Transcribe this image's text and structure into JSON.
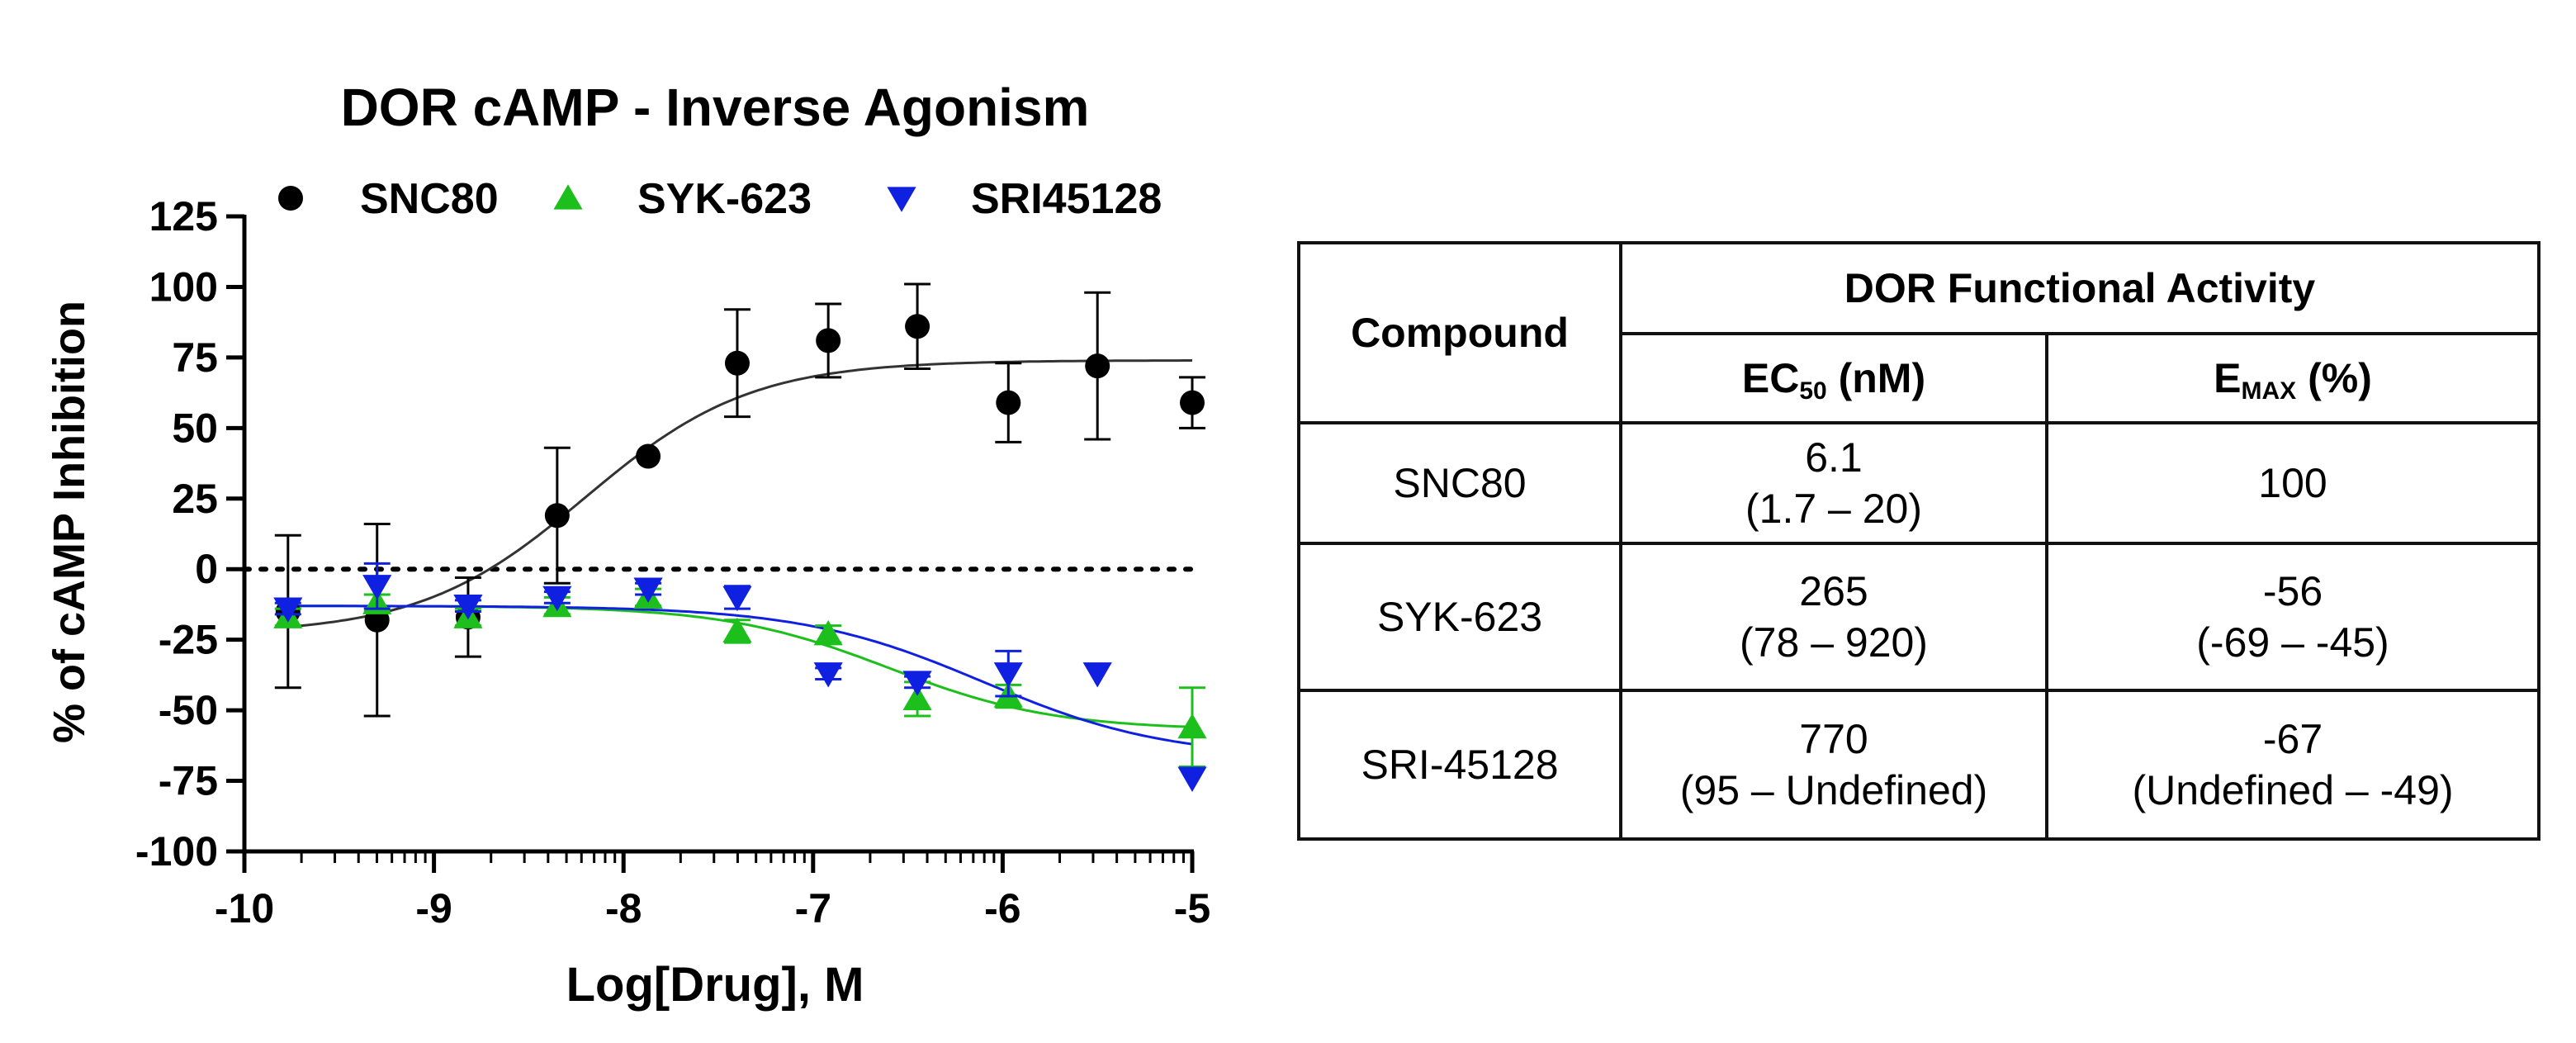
{
  "chart_data": {
    "type": "scatter",
    "title": "DOR cAMP - Inverse Agonism",
    "xlabel": "Log[Drug], M",
    "ylabel": "% of cAMP Inhibition",
    "xlim": [
      -10,
      -5
    ],
    "ylim": [
      -100,
      125
    ],
    "x_ticks": [
      "-10",
      "-9",
      "-8",
      "-7",
      "-6",
      "-5"
    ],
    "y_ticks": [
      "125",
      "100",
      "75",
      "50",
      "25",
      "0",
      "-25",
      "-50",
      "-75",
      "-100"
    ],
    "reference_line": {
      "y": 0,
      "style": "dotted"
    },
    "legend_position": "top",
    "series": [
      {
        "name": "SNC80",
        "marker": "circle",
        "color": "#000000",
        "x": [
          -9.77,
          -9.3,
          -8.82,
          -8.35,
          -7.87,
          -7.4,
          -6.92,
          -6.45,
          -5.97,
          -5.5,
          -5.0
        ],
        "y": [
          -15,
          -18,
          -17,
          19,
          40,
          73,
          81,
          86,
          59,
          72,
          59
        ],
        "err": [
          27,
          34,
          14,
          24,
          0,
          19,
          13,
          15,
          14,
          26,
          9
        ],
        "fit": {
          "bottom": -23,
          "top": 74,
          "logEC50": -8.2,
          "hill": 1.0
        }
      },
      {
        "name": "SYK-623",
        "marker": "triangle-up",
        "color": "#1dbf1d",
        "x": [
          -9.77,
          -9.3,
          -8.82,
          -8.35,
          -7.87,
          -7.4,
          -6.92,
          -6.45,
          -5.97,
          -5.0
        ],
        "y": [
          -17,
          -12,
          -17,
          -13,
          -10,
          -22,
          -23,
          -46,
          -45,
          -56
        ],
        "err": [
          3,
          3,
          3,
          3,
          3,
          4,
          3,
          6,
          4,
          14
        ],
        "fit": {
          "bottom": -13,
          "top": -57,
          "logEC50": -6.6,
          "hill": 1.0
        }
      },
      {
        "name": "SRI45128",
        "marker": "triangle-down",
        "color": "#1020e0",
        "x": [
          -9.77,
          -9.3,
          -8.82,
          -8.35,
          -7.87,
          -7.4,
          -6.92,
          -6.45,
          -5.97,
          -5.5,
          -5.0
        ],
        "y": [
          -14,
          -6,
          -13,
          -10,
          -7,
          -10,
          -37,
          -40,
          -37,
          -37,
          -74
        ],
        "err": [
          2,
          8,
          2,
          2,
          2,
          4,
          2,
          2,
          8,
          0,
          0
        ],
        "fit": {
          "bottom": -13,
          "top": -67,
          "logEC50": -6.1,
          "hill": 0.9
        }
      }
    ]
  },
  "table": {
    "compound_header": "Compound",
    "group_header": "DOR Functional Activity",
    "ec50_header": {
      "main": "EC",
      "sub": "50",
      "unit": " (nM)"
    },
    "emax_header": {
      "main": "E",
      "sub": "MAX",
      "unit": " (%)"
    },
    "rows": [
      {
        "compound": "SNC80",
        "ec50": "6.1",
        "ec50_ci": "(1.7 – 20)",
        "emax": "100",
        "emax_ci": ""
      },
      {
        "compound": "SYK-623",
        "ec50": "265",
        "ec50_ci": "(78 – 920)",
        "emax": "-56",
        "emax_ci": "(-69 – -45)"
      },
      {
        "compound": "SRI-45128",
        "ec50": "770",
        "ec50_ci": "(95 – Undefined)",
        "emax": "-67",
        "emax_ci": "(Undefined – -49)"
      }
    ]
  }
}
